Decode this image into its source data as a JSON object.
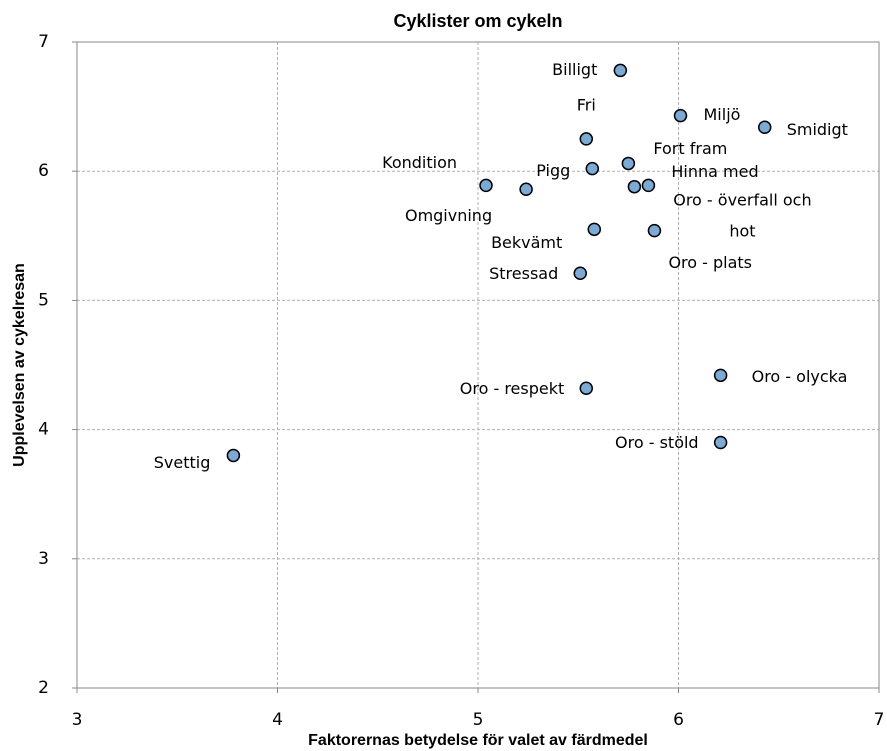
{
  "chart_data": {
    "type": "scatter",
    "title": "Cyklister om cykeln",
    "xlabel": "Faktorernas betydelse för valet av färdmedel",
    "ylabel": "Upplevelsen av cykelresan",
    "color": "#7aaad6",
    "labels": [
      "Billigt",
      "Miljö",
      "Smidigt",
      "Fri",
      "Fort fram",
      "Pigg",
      "Kondition",
      "Omgivning",
      "Hinna med",
      "Oro - överfall och hot",
      "Bekvämt",
      "Oro - plats",
      "Stressad",
      "Oro - respekt",
      "Oro - olycka",
      "Oro - stöld",
      "Svettig"
    ],
    "x": [
      5.71,
      6.01,
      6.43,
      5.54,
      5.75,
      5.57,
      5.04,
      5.24,
      5.78,
      5.85,
      5.58,
      5.88,
      5.51,
      5.54,
      6.21,
      6.21,
      3.78
    ],
    "y": [
      6.78,
      6.43,
      6.34,
      6.25,
      6.06,
      6.02,
      5.89,
      5.86,
      5.88,
      5.89,
      5.55,
      5.54,
      5.21,
      4.32,
      4.42,
      3.9,
      3.8
    ],
    "xlim": [
      3,
      7
    ],
    "xticks": [
      3,
      4,
      5,
      6,
      7
    ],
    "ylim": [
      2,
      7
    ],
    "yticks": [
      2,
      3,
      4,
      5,
      6,
      7
    ],
    "grid": true
  }
}
